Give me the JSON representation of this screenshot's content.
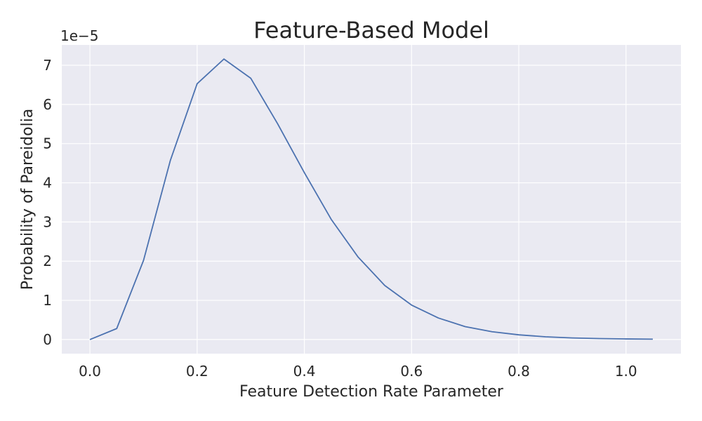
{
  "chart_data": {
    "type": "line",
    "title": "Feature-Based Model",
    "xlabel": "Feature Detection Rate Parameter",
    "ylabel": "Probability of Pareidolia",
    "y_multiplier": "1e−5",
    "xlim": [
      -0.0525,
      1.1025
    ],
    "ylim": [
      -0.36,
      7.52
    ],
    "grid": true,
    "background_color": "#EAEAF2",
    "x_ticks": [
      0.0,
      0.2,
      0.4,
      0.6,
      0.8,
      1.0
    ],
    "x_tick_labels": [
      "0.0",
      "0.2",
      "0.4",
      "0.6",
      "0.8",
      "1.0"
    ],
    "y_ticks": [
      0,
      1,
      2,
      3,
      4,
      5,
      6,
      7
    ],
    "y_tick_labels": [
      "0",
      "1",
      "2",
      "3",
      "4",
      "5",
      "6",
      "7"
    ],
    "series": [
      {
        "color": "#4C72B0",
        "x": [
          0.0,
          0.05,
          0.1,
          0.15,
          0.2,
          0.25,
          0.3,
          0.35,
          0.4,
          0.45,
          0.5,
          0.55,
          0.6,
          0.65,
          0.7,
          0.75,
          0.8,
          0.85,
          0.9,
          0.95,
          1.0,
          1.05
        ],
        "y": [
          0.0,
          0.28,
          2.02,
          4.57,
          6.53,
          7.16,
          6.67,
          5.51,
          4.26,
          3.07,
          2.11,
          1.38,
          0.88,
          0.55,
          0.33,
          0.2,
          0.12,
          0.07,
          0.04,
          0.025,
          0.015,
          0.01
        ]
      }
    ]
  }
}
